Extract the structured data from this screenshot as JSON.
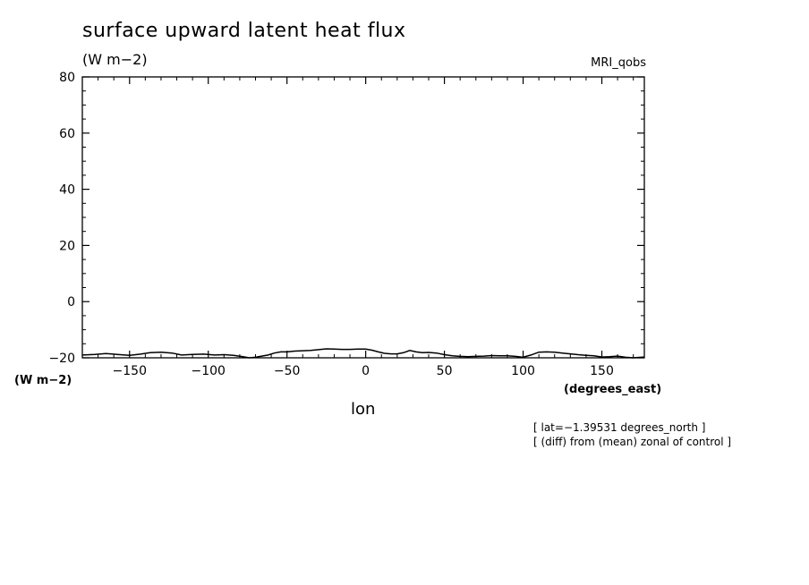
{
  "chart_data": {
    "type": "line",
    "title": "surface upward latent heat flux",
    "units": "(W m−2)",
    "model_label": "MRI_qobs",
    "xlabel": "lon",
    "x_units": "(degrees_east)",
    "y_units": "(W m−2)",
    "annotations": [
      "[ lat=−1.39531 degrees_north ]",
      "[ (diff) from (mean) zonal of control ]"
    ],
    "xlim": [
      -180,
      177
    ],
    "ylim": [
      -20,
      80
    ],
    "x_ticks": [
      -150,
      -100,
      -50,
      0,
      50,
      100,
      150
    ],
    "x_tick_labels": [
      "−150",
      "−100",
      "−50",
      "0",
      "50",
      "100",
      "150"
    ],
    "y_ticks": [
      -20,
      0,
      20,
      40,
      60,
      80
    ],
    "y_tick_labels": [
      "−20",
      "0",
      "20",
      "40",
      "60",
      "80"
    ],
    "grid": false,
    "series": [
      {
        "x": [
          -180,
          -172,
          -165,
          -158,
          -150,
          -143,
          -137,
          -130,
          -123,
          -117,
          -110,
          -103,
          -96,
          -90,
          -84,
          -78,
          -74,
          -70,
          -66,
          -62,
          -58,
          -54,
          -50,
          -45,
          -40,
          -35,
          -30,
          -25,
          -20,
          -15,
          -10,
          -5,
          0,
          4,
          8,
          12,
          16,
          20,
          24,
          28,
          32,
          36,
          40,
          45,
          50,
          55,
          60,
          65,
          70,
          75,
          80,
          85,
          90,
          95,
          100,
          105,
          110,
          115,
          120,
          125,
          130,
          135,
          140,
          145,
          150,
          155,
          160,
          165,
          170,
          177
        ],
        "y": [
          -19.0,
          -18.8,
          -18.5,
          -18.8,
          -19.1,
          -18.7,
          -18.2,
          -18.0,
          -18.3,
          -19.0,
          -18.8,
          -18.7,
          -19.0,
          -18.9,
          -19.1,
          -19.6,
          -20.0,
          -19.8,
          -19.4,
          -19.0,
          -18.3,
          -17.9,
          -17.9,
          -17.6,
          -17.5,
          -17.4,
          -17.1,
          -16.8,
          -16.9,
          -17.0,
          -17.0,
          -16.9,
          -16.9,
          -17.3,
          -17.9,
          -18.4,
          -18.6,
          -18.6,
          -18.2,
          -17.4,
          -17.9,
          -18.2,
          -18.1,
          -18.3,
          -18.9,
          -19.3,
          -19.5,
          -19.6,
          -19.5,
          -19.4,
          -19.2,
          -19.3,
          -19.3,
          -19.5,
          -19.8,
          -19.0,
          -18.0,
          -17.9,
          -18.0,
          -18.3,
          -18.6,
          -18.9,
          -19.1,
          -19.3,
          -19.7,
          -19.6,
          -19.4,
          -19.8,
          -20.0,
          -19.7
        ]
      }
    ]
  }
}
